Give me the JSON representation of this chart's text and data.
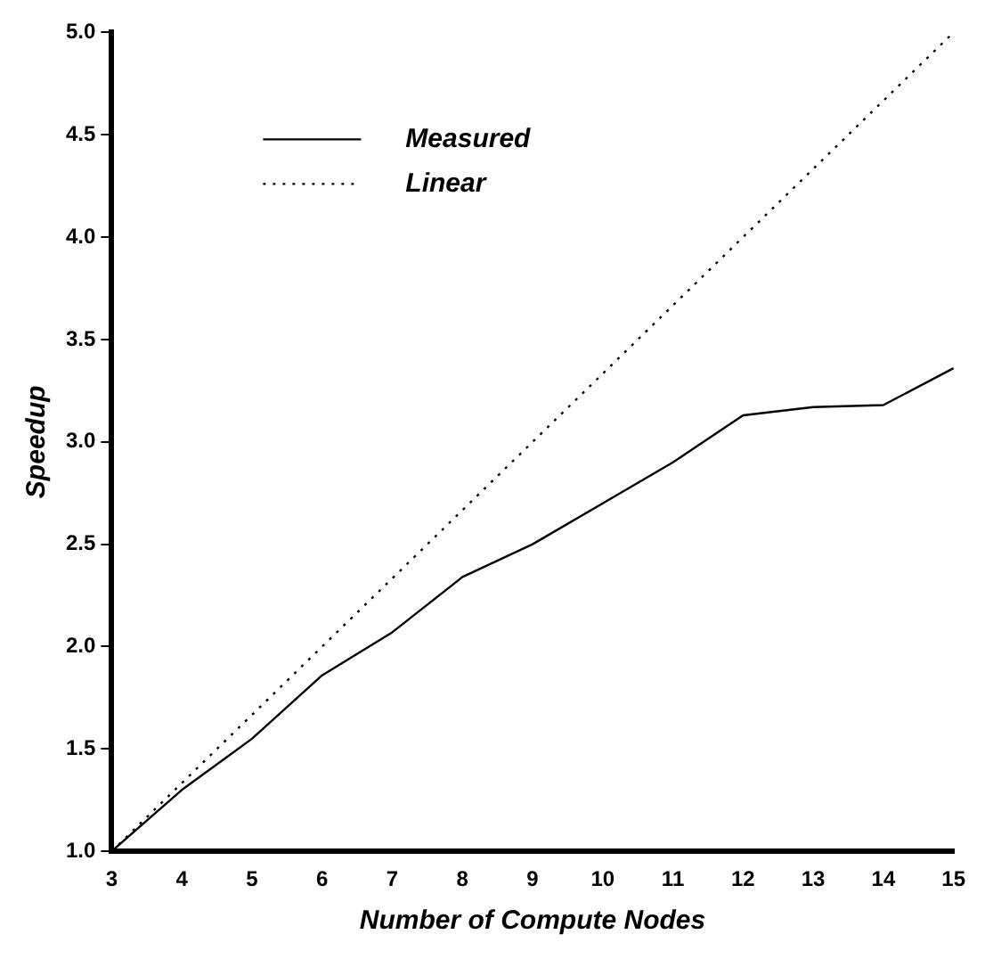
{
  "chart_data": {
    "type": "line",
    "xlabel": "Number of Compute Nodes",
    "ylabel": "Speedup",
    "xlim": [
      3,
      15
    ],
    "xticks": [
      3,
      4,
      5,
      6,
      7,
      8,
      9,
      10,
      11,
      12,
      13,
      14,
      15
    ],
    "ylim": [
      1,
      5
    ],
    "yticks": [
      {
        "value": 1,
        "label": "1.0"
      },
      {
        "value": 1.5,
        "label": "1.5"
      },
      {
        "value": 2,
        "label": "2.0"
      },
      {
        "value": 2.5,
        "label": "2.5"
      },
      {
        "value": 3,
        "label": "3.0"
      },
      {
        "value": 3.5,
        "label": "3.5"
      },
      {
        "value": 4,
        "label": "4.0"
      },
      {
        "value": 4.5,
        "label": "4.5"
      },
      {
        "value": 5,
        "label": "5.0"
      }
    ],
    "series": [
      {
        "name": "Measured",
        "color": "#000000",
        "line_style": "solid",
        "x": [
          3,
          4,
          5,
          6,
          7,
          8,
          9,
          10,
          11,
          12,
          13,
          14,
          15
        ],
        "values": [
          1.0,
          1.3,
          1.55,
          1.86,
          2.07,
          2.34,
          2.5,
          2.7,
          2.9,
          3.13,
          3.17,
          3.18,
          3.36
        ]
      },
      {
        "name": "Linear",
        "color": "#000000",
        "line_style": "dotted",
        "x": [
          3,
          15
        ],
        "values": [
          1,
          5
        ]
      }
    ],
    "legend": "top left",
    "grid": false,
    "marker": "none"
  }
}
